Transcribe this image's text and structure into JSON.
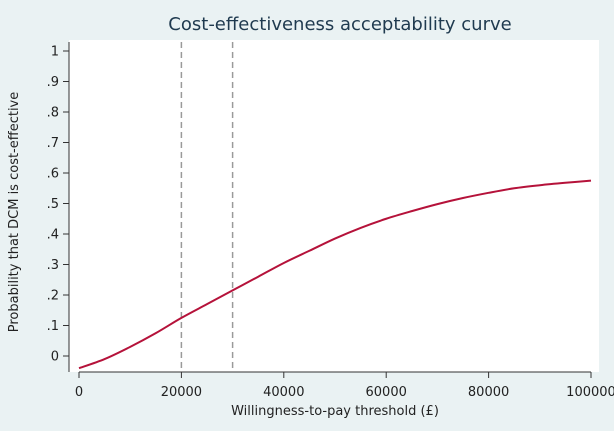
{
  "chart_data": {
    "type": "line",
    "title": "Cost-effectiveness acceptability curve",
    "xlabel": "Willingness-to-pay threshold (£)",
    "ylabel": "Probability that DCM is cost-effective",
    "xlim": [
      0,
      100000
    ],
    "ylim": [
      -0.05,
      1.03
    ],
    "x_ticks": [
      0,
      20000,
      40000,
      60000,
      80000,
      100000
    ],
    "x_tick_labels": [
      "0",
      "20000",
      "40000",
      "60000",
      "80000",
      "100000"
    ],
    "y_ticks": [
      0,
      0.1,
      0.2,
      0.3,
      0.4,
      0.5,
      0.6,
      0.7,
      0.8,
      0.9,
      1
    ],
    "y_tick_labels": [
      "0",
      ".1",
      ".2",
      ".3",
      ".4",
      ".5",
      ".6",
      ".7",
      ".8",
      ".9",
      "1"
    ],
    "reference_lines_x": [
      20000,
      30000
    ],
    "grid": false,
    "colors": {
      "background": "#eaf2f3",
      "plot_background": "#ffffff",
      "line": "#b5123a",
      "reference": "#9a9a9a",
      "title": "#1f3a4f"
    },
    "series": [
      {
        "x": [
          0,
          5000,
          10000,
          15000,
          20000,
          25000,
          30000,
          35000,
          40000,
          45000,
          50000,
          55000,
          60000,
          65000,
          70000,
          75000,
          80000,
          85000,
          90000,
          95000,
          100000
        ],
        "y": [
          -0.04,
          -0.01,
          0.03,
          0.075,
          0.125,
          0.17,
          0.215,
          0.26,
          0.305,
          0.345,
          0.385,
          0.42,
          0.45,
          0.475,
          0.498,
          0.518,
          0.535,
          0.55,
          0.56,
          0.568,
          0.575
        ]
      }
    ]
  }
}
